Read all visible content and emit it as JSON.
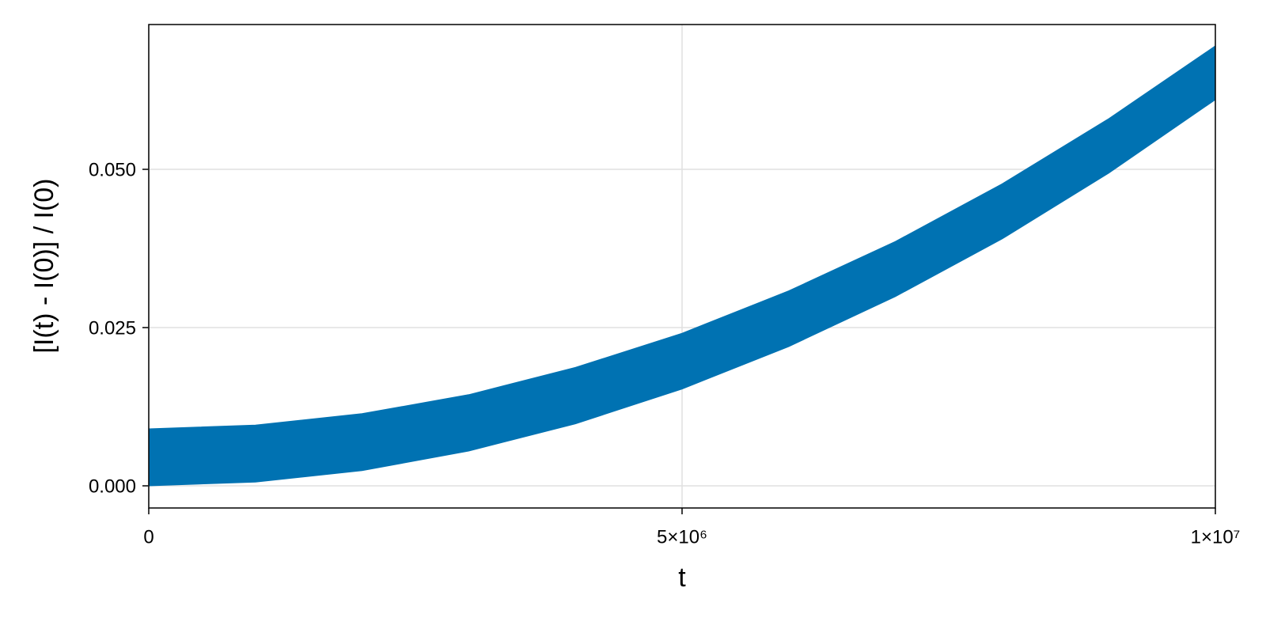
{
  "chart_data": {
    "type": "band",
    "x": [
      0,
      1000000,
      2000000,
      3000000,
      4000000,
      5000000,
      6000000,
      7000000,
      8000000,
      9000000,
      10000000
    ],
    "lower": [
      0,
      0.0006,
      0.0024,
      0.0055,
      0.0098,
      0.0153,
      0.022,
      0.0299,
      0.039,
      0.0494,
      0.061
    ],
    "upper": [
      0.009,
      0.0096,
      0.0114,
      0.0144,
      0.0187,
      0.0241,
      0.0308,
      0.0386,
      0.0477,
      0.058,
      0.0695
    ],
    "color": "#0072b2",
    "xlabel": "t",
    "ylabel": "[I(t) - I(0)] / I(0)",
    "xlim": [
      0,
      10000000
    ],
    "ylim": [
      -0.0035,
      0.072875
    ],
    "xticks": [
      0,
      {
        "value": 5000000,
        "label": "5×10⁶"
      },
      {
        "value": 10000000,
        "label": "1×10⁷"
      }
    ],
    "yticks": [
      {
        "value": 0,
        "label": "0.000"
      },
      {
        "value": 0.025,
        "label": "0.025"
      },
      {
        "value": 0.05,
        "label": "0.050"
      }
    ],
    "grid": true
  }
}
